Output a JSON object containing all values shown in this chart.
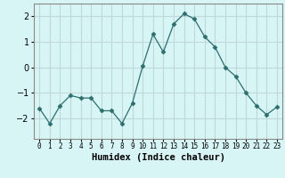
{
  "x": [
    0,
    1,
    2,
    3,
    4,
    5,
    6,
    7,
    8,
    9,
    10,
    11,
    12,
    13,
    14,
    15,
    16,
    17,
    18,
    19,
    20,
    21,
    22,
    23
  ],
  "y": [
    -1.6,
    -2.2,
    -1.5,
    -1.1,
    -1.2,
    -1.2,
    -1.7,
    -1.7,
    -2.2,
    -1.4,
    0.05,
    1.3,
    0.6,
    1.7,
    2.1,
    1.9,
    1.2,
    0.8,
    0.0,
    -0.35,
    -1.0,
    -1.5,
    -1.85,
    -1.55
  ],
  "line_color": "#2d6e6e",
  "marker": "D",
  "marker_size": 2.5,
  "bg_color": "#d8f5f5",
  "grid_color": "#c0d8d8",
  "xlabel": "Humidex (Indice chaleur)",
  "ylim": [
    -2.8,
    2.5
  ],
  "xlim": [
    -0.5,
    23.5
  ],
  "yticks": [
    -2,
    -1,
    0,
    1,
    2
  ],
  "xtick_labels": [
    "0",
    "1",
    "2",
    "3",
    "4",
    "5",
    "6",
    "7",
    "8",
    "9",
    "10",
    "11",
    "12",
    "13",
    "14",
    "15",
    "16",
    "17",
    "18",
    "19",
    "20",
    "21",
    "22",
    "23"
  ],
  "xlabel_fontsize": 7.5,
  "ytick_fontsize": 7,
  "xtick_fontsize": 5.5
}
